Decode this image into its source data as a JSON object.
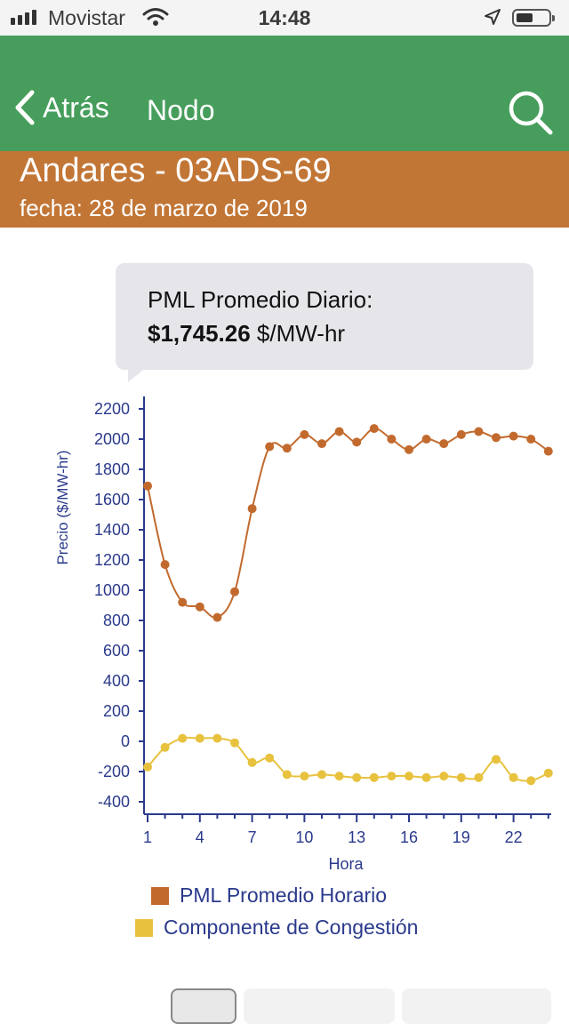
{
  "status_bar": {
    "carrier": "Movistar",
    "time": "14:48"
  },
  "nav": {
    "back_label": "Atrás",
    "title": "Nodo",
    "search_icon": "search-icon"
  },
  "header": {
    "node_name": "Andares - 03ADS-69",
    "date": "fecha: 28 de marzo de 2019"
  },
  "tooltip": {
    "label": "PML Promedio Diario:",
    "value": "$1,745.26",
    "unit": " $/MW-hr"
  },
  "legend": {
    "pml": "PML Promedio Horario",
    "congestion": "Componente de Congestión"
  },
  "colors": {
    "navbar": "#479e5c",
    "header": "#c27636",
    "pml": "#c26a2e",
    "congestion": "#e8c23e",
    "axis": "#2b3a8c"
  },
  "chart_data": {
    "type": "line",
    "xlabel": "Hora",
    "ylabel": "Precio ($/MW-hr)",
    "ylim": [
      -400,
      2200
    ],
    "yticks": [
      2200,
      2000,
      1800,
      1600,
      1400,
      1200,
      1000,
      800,
      600,
      400,
      200,
      0,
      -200,
      -400
    ],
    "xticks": [
      1,
      4,
      7,
      10,
      13,
      16,
      19,
      22
    ],
    "x": [
      1,
      2,
      3,
      4,
      5,
      6,
      7,
      8,
      9,
      10,
      11,
      12,
      13,
      14,
      15,
      16,
      17,
      18,
      19,
      20,
      21,
      22,
      23,
      24
    ],
    "series": [
      {
        "name": "PML Promedio Horario",
        "values": [
          1690,
          1170,
          920,
          890,
          820,
          990,
          1540,
          1950,
          1940,
          2030,
          1970,
          2050,
          1980,
          2070,
          2000,
          1930,
          2000,
          1970,
          2030,
          2050,
          2010,
          2020,
          2000,
          1920
        ]
      },
      {
        "name": "Componente de Congestión",
        "values": [
          -170,
          -40,
          20,
          20,
          20,
          -10,
          -140,
          -110,
          -220,
          -230,
          -220,
          -230,
          -240,
          -240,
          -230,
          -230,
          -240,
          -230,
          -240,
          -240,
          -120,
          -240,
          -260,
          -210
        ]
      }
    ]
  }
}
